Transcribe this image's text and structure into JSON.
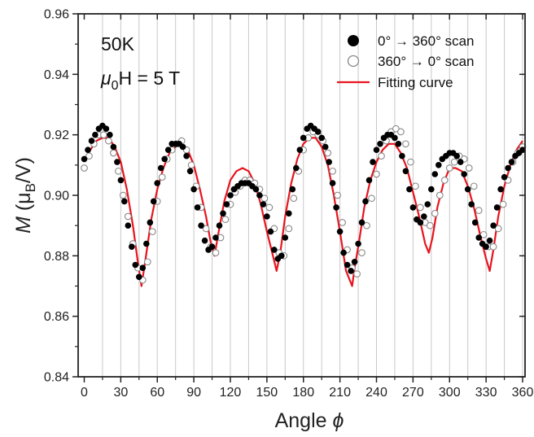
{
  "chart_data": {
    "type": "scatter",
    "xlabel": "Angle ",
    "xlabel_symbol": "ϕ",
    "ylabel": "M",
    "ylabel_paren_open": " (μ",
    "ylabel_sub": "B",
    "ylabel_paren_close": "/V)",
    "xlim": [
      -5,
      362
    ],
    "ylim": [
      0.84,
      0.96
    ],
    "x_ticks": [
      0,
      30,
      60,
      90,
      120,
      150,
      180,
      210,
      240,
      270,
      300,
      330,
      360
    ],
    "y_ticks": [
      0.84,
      0.86,
      0.88,
      0.9,
      0.92,
      0.94,
      0.96
    ],
    "y_tick_labels": [
      "0.84",
      "0.86",
      "0.88",
      "0.90",
      "0.92",
      "0.94",
      "0.96"
    ],
    "minor_x_step": 15,
    "vertical_reference_lines": [
      15,
      30,
      45,
      60,
      75,
      90,
      105,
      120,
      135,
      150,
      165,
      180,
      195,
      210,
      225,
      240,
      255,
      270,
      285,
      300,
      315,
      330,
      345,
      360
    ],
    "annotation_temperature": "50K",
    "annotation_field_sym": "μ",
    "annotation_field_sub": "0",
    "annotation_field_rest": "H = 5 T",
    "legend_position": "top-right",
    "legend": [
      {
        "label": "0° → 360° scan",
        "marker": "filled-circle"
      },
      {
        "label": "360° → 0° scan",
        "marker": "open-circle"
      },
      {
        "label": "Fitting curve",
        "marker": "line"
      }
    ],
    "colors": {
      "filled": "#000000",
      "open": "#888888",
      "fit": "#e8141e",
      "reference_lines": "#c8c8c8"
    },
    "series": [
      {
        "name": "0° → 360° scan",
        "style": "filled",
        "x": [
          0,
          3,
          6,
          9,
          12,
          15,
          18,
          21,
          24,
          27,
          30,
          33,
          36,
          39,
          42,
          45,
          48,
          51,
          54,
          57,
          60,
          63,
          66,
          69,
          72,
          75,
          78,
          81,
          84,
          87,
          90,
          93,
          96,
          99,
          102,
          105,
          108,
          111,
          114,
          117,
          120,
          123,
          126,
          129,
          132,
          135,
          138,
          141,
          144,
          147,
          150,
          153,
          156,
          159,
          162,
          165,
          168,
          171,
          174,
          177,
          180,
          183,
          186,
          189,
          192,
          195,
          198,
          201,
          204,
          207,
          210,
          213,
          216,
          219,
          222,
          225,
          228,
          231,
          234,
          237,
          240,
          243,
          246,
          249,
          252,
          255,
          258,
          261,
          264,
          267,
          270,
          273,
          276,
          279,
          282,
          285,
          288,
          291,
          294,
          297,
          300,
          303,
          306,
          309,
          312,
          315,
          318,
          321,
          324,
          327,
          330,
          333,
          336,
          339,
          342,
          345,
          348,
          351,
          354,
          357,
          360
        ],
        "y": [
          0.912,
          0.915,
          0.918,
          0.92,
          0.922,
          0.923,
          0.922,
          0.92,
          0.916,
          0.911,
          0.905,
          0.898,
          0.89,
          0.883,
          0.877,
          0.873,
          0.876,
          0.884,
          0.891,
          0.898,
          0.904,
          0.909,
          0.912,
          0.915,
          0.917,
          0.917,
          0.917,
          0.916,
          0.913,
          0.908,
          0.902,
          0.896,
          0.89,
          0.885,
          0.882,
          0.883,
          0.886,
          0.89,
          0.894,
          0.897,
          0.9,
          0.902,
          0.903,
          0.904,
          0.904,
          0.904,
          0.903,
          0.902,
          0.9,
          0.897,
          0.893,
          0.888,
          0.882,
          0.879,
          0.88,
          0.886,
          0.894,
          0.902,
          0.909,
          0.915,
          0.919,
          0.922,
          0.923,
          0.922,
          0.921,
          0.919,
          0.916,
          0.911,
          0.904,
          0.896,
          0.888,
          0.881,
          0.877,
          0.875,
          0.878,
          0.884,
          0.891,
          0.898,
          0.905,
          0.911,
          0.915,
          0.917,
          0.919,
          0.92,
          0.92,
          0.919,
          0.917,
          0.913,
          0.908,
          0.902,
          0.896,
          0.892,
          0.891,
          0.893,
          0.897,
          0.902,
          0.907,
          0.91,
          0.912,
          0.913,
          0.914,
          0.914,
          0.913,
          0.911,
          0.907,
          0.902,
          0.897,
          0.891,
          0.886,
          0.884,
          0.883,
          0.885,
          0.89,
          0.896,
          0.902,
          0.906,
          0.909,
          0.911,
          0.913,
          0.914,
          0.915
        ]
      },
      {
        "name": "360° → 0° scan",
        "style": "open",
        "x": [
          0,
          4,
          8,
          12,
          16,
          20,
          24,
          28,
          32,
          36,
          40,
          44,
          48,
          52,
          56,
          60,
          64,
          68,
          72,
          76,
          80,
          84,
          88,
          92,
          96,
          100,
          104,
          108,
          112,
          116,
          120,
          124,
          128,
          132,
          136,
          140,
          144,
          148,
          152,
          156,
          160,
          164,
          168,
          172,
          176,
          180,
          184,
          188,
          192,
          196,
          200,
          204,
          208,
          212,
          216,
          220,
          224,
          228,
          232,
          236,
          240,
          244,
          248,
          252,
          256,
          260,
          264,
          268,
          272,
          276,
          280,
          284,
          288,
          292,
          296,
          300,
          304,
          308,
          312,
          316,
          320,
          324,
          328,
          332,
          336,
          340,
          344,
          348,
          352,
          356,
          360
        ],
        "y": [
          0.909,
          0.913,
          0.917,
          0.92,
          0.92,
          0.918,
          0.914,
          0.908,
          0.9,
          0.893,
          0.884,
          0.876,
          0.872,
          0.878,
          0.888,
          0.898,
          0.906,
          0.912,
          0.915,
          0.917,
          0.918,
          0.915,
          0.91,
          0.903,
          0.896,
          0.889,
          0.883,
          0.881,
          0.886,
          0.892,
          0.897,
          0.901,
          0.903,
          0.905,
          0.905,
          0.904,
          0.902,
          0.899,
          0.896,
          0.889,
          0.881,
          0.88,
          0.889,
          0.899,
          0.908,
          0.915,
          0.919,
          0.921,
          0.92,
          0.918,
          0.914,
          0.908,
          0.9,
          0.891,
          0.882,
          0.876,
          0.874,
          0.881,
          0.89,
          0.899,
          0.907,
          0.913,
          0.918,
          0.921,
          0.922,
          0.921,
          0.917,
          0.911,
          0.903,
          0.896,
          0.891,
          0.89,
          0.894,
          0.9,
          0.905,
          0.909,
          0.911,
          0.913,
          0.912,
          0.909,
          0.903,
          0.895,
          0.887,
          0.883,
          0.883,
          0.889,
          0.897,
          0.905,
          0.911,
          0.914,
          0.916
        ]
      },
      {
        "name": "Fitting curve",
        "style": "line",
        "x": [
          0,
          5,
          10,
          15,
          20,
          25,
          30,
          35,
          40,
          44,
          47,
          50,
          55,
          60,
          65,
          70,
          75,
          80,
          85,
          90,
          95,
          100,
          104,
          107,
          110,
          115,
          120,
          125,
          130,
          135,
          140,
          145,
          150,
          155,
          158,
          161,
          165,
          170,
          175,
          180,
          185,
          190,
          195,
          200,
          205,
          210,
          215,
          220,
          222,
          225,
          230,
          235,
          240,
          245,
          250,
          255,
          260,
          265,
          270,
          275,
          280,
          283,
          286,
          290,
          295,
          300,
          305,
          310,
          315,
          320,
          325,
          330,
          333,
          336,
          340,
          345,
          350,
          355,
          360
        ],
        "y": [
          0.911,
          0.915,
          0.918,
          0.919,
          0.919,
          0.916,
          0.911,
          0.902,
          0.89,
          0.878,
          0.87,
          0.878,
          0.892,
          0.902,
          0.909,
          0.914,
          0.916,
          0.917,
          0.915,
          0.91,
          0.902,
          0.893,
          0.884,
          0.88,
          0.887,
          0.898,
          0.905,
          0.908,
          0.909,
          0.908,
          0.904,
          0.897,
          0.888,
          0.88,
          0.875,
          0.881,
          0.893,
          0.904,
          0.912,
          0.917,
          0.919,
          0.919,
          0.916,
          0.91,
          0.9,
          0.888,
          0.875,
          0.87,
          0.876,
          0.883,
          0.896,
          0.905,
          0.911,
          0.915,
          0.917,
          0.917,
          0.914,
          0.909,
          0.901,
          0.893,
          0.884,
          0.881,
          0.886,
          0.896,
          0.904,
          0.909,
          0.909,
          0.908,
          0.903,
          0.896,
          0.887,
          0.879,
          0.875,
          0.882,
          0.893,
          0.903,
          0.91,
          0.915,
          0.918
        ]
      }
    ]
  }
}
